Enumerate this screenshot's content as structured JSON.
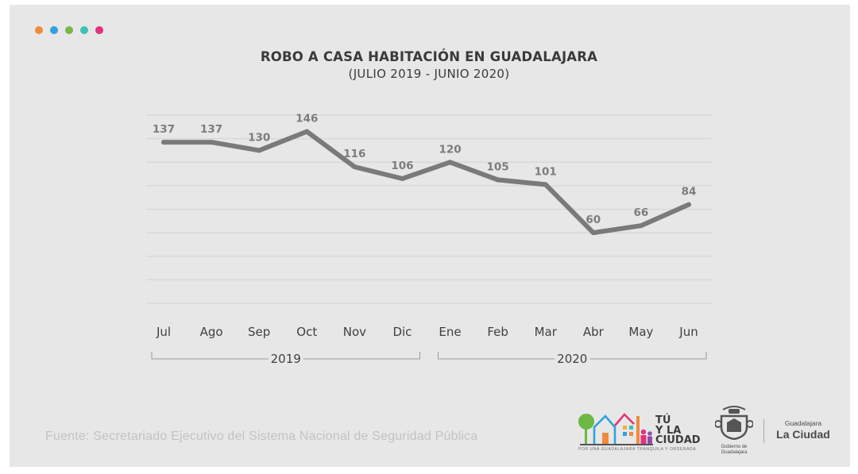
{
  "dots": [
    "#f08a3c",
    "#2ea3dc",
    "#7ab648",
    "#3cc2b4",
    "#e2327d"
  ],
  "colors": {
    "line": "#7a7a7a",
    "grid": "#d6d6d8",
    "label": "#7c7c7c",
    "axis": "#3f3f3f"
  },
  "chart_data": {
    "type": "line",
    "title": "ROBO A CASA HABITACIÓN EN GUADALAJARA",
    "subtitle": "(JULIO 2019 - JUNIO 2020)",
    "categories": [
      "Jul",
      "Ago",
      "Sep",
      "Oct",
      "Nov",
      "Dic",
      "Ene",
      "Feb",
      "Mar",
      "Abr",
      "May",
      "Jun"
    ],
    "values": [
      137,
      137,
      130,
      146,
      116,
      106,
      120,
      105,
      101,
      60,
      66,
      84
    ],
    "year_groups": [
      {
        "label": "2019",
        "from": 0,
        "to": 5
      },
      {
        "label": "2020",
        "from": 6,
        "to": 11
      }
    ],
    "ylim": [
      0,
      160
    ],
    "grid": true,
    "legend": "none",
    "data_labels": true
  },
  "footer": {
    "source": "Fuente: Secretariado Ejecutivo del Sistema Nacional de Seguridad Pública",
    "logo_tu_line1": "TÚ",
    "logo_tu_line2": "Y LA",
    "logo_tu_line3": "CIUDAD",
    "logo_tu_tagline": "POR UNA GUADALAJARA TRANQUILA Y ORDENADA",
    "gob_line1": "Gobierno de",
    "gob_line2": "Guadalajara",
    "lc_top": "Guadalajara",
    "lc_bottom": "La Ciudad"
  }
}
